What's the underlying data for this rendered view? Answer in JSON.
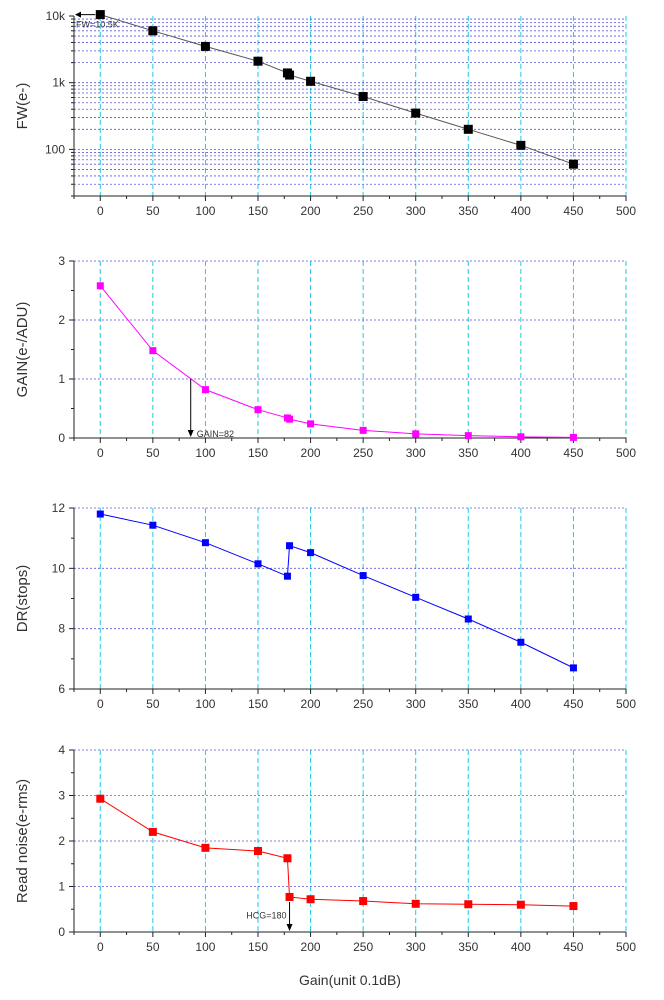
{
  "chart_data": [
    {
      "type": "line",
      "scale": "log",
      "ylabel": "FW(e-)",
      "xlabel": "",
      "xlim": [
        -25,
        500
      ],
      "ylim": [
        20,
        10000
      ],
      "color": "#000000",
      "x_ticks": [
        0,
        50,
        100,
        150,
        200,
        250,
        300,
        350,
        400,
        450,
        500
      ],
      "y_ticks": [
        {
          "value": 100,
          "label": "100"
        },
        {
          "value": 1000,
          "label": "1k"
        },
        {
          "value": 10000,
          "label": "10k"
        }
      ],
      "x": [
        0,
        50,
        100,
        150,
        178,
        180,
        200,
        250,
        300,
        350,
        400,
        450
      ],
      "values": [
        10500,
        6000,
        3500,
        2100,
        1400,
        1300,
        1050,
        620,
        350,
        200,
        115,
        60
      ],
      "annotation": {
        "text": "FW=10.5K",
        "x": 0,
        "y": 10500
      }
    },
    {
      "type": "line",
      "scale": "linear",
      "ylabel": "GAIN(e-/ADU)",
      "xlabel": "",
      "xlim": [
        -25,
        500
      ],
      "ylim": [
        0,
        3
      ],
      "color": "#ff00ff",
      "x_ticks": [
        0,
        50,
        100,
        150,
        200,
        250,
        300,
        350,
        400,
        450,
        500
      ],
      "y_ticks": [
        {
          "value": 0,
          "label": "0"
        },
        {
          "value": 1,
          "label": "1"
        },
        {
          "value": 2,
          "label": "2"
        },
        {
          "value": 3,
          "label": "3"
        }
      ],
      "x": [
        0,
        50,
        100,
        150,
        178,
        180,
        200,
        250,
        300,
        350,
        400,
        450
      ],
      "values": [
        2.58,
        1.48,
        0.82,
        0.48,
        0.34,
        0.32,
        0.24,
        0.13,
        0.07,
        0.04,
        0.02,
        0.01
      ],
      "annotation": {
        "text": "GAIN=82",
        "x": 86,
        "y": 1
      }
    },
    {
      "type": "line",
      "scale": "linear",
      "ylabel": "DR(stops)",
      "xlabel": "",
      "xlim": [
        -25,
        500
      ],
      "ylim": [
        6,
        12
      ],
      "color": "#0000ff",
      "x_ticks": [
        0,
        50,
        100,
        150,
        200,
        250,
        300,
        350,
        400,
        450,
        500
      ],
      "y_ticks": [
        {
          "value": 6,
          "label": "6"
        },
        {
          "value": 8,
          "label": "8"
        },
        {
          "value": 10,
          "label": "10"
        },
        {
          "value": 12,
          "label": "12"
        }
      ],
      "x": [
        0,
        50,
        100,
        150,
        178,
        180,
        200,
        250,
        300,
        350,
        400,
        450
      ],
      "values": [
        11.8,
        11.43,
        10.85,
        10.15,
        9.74,
        10.75,
        10.52,
        9.76,
        9.04,
        8.32,
        7.55,
        6.7
      ]
    },
    {
      "type": "line",
      "scale": "linear",
      "ylabel": "Read noise(e-rms)",
      "xlabel": "Gain(unit 0.1dB)",
      "xlim": [
        -25,
        500
      ],
      "ylim": [
        0,
        4
      ],
      "color": "#ff0000",
      "x_ticks": [
        0,
        50,
        100,
        150,
        200,
        250,
        300,
        350,
        400,
        450,
        500
      ],
      "y_ticks": [
        {
          "value": 0,
          "label": "0"
        },
        {
          "value": 1,
          "label": "1"
        },
        {
          "value": 2,
          "label": "2"
        },
        {
          "value": 3,
          "label": "3"
        },
        {
          "value": 4,
          "label": "4"
        }
      ],
      "x": [
        0,
        50,
        100,
        150,
        178,
        180,
        200,
        250,
        300,
        350,
        400,
        450
      ],
      "values": [
        2.93,
        2.2,
        1.85,
        1.78,
        1.62,
        0.77,
        0.72,
        0.68,
        0.62,
        0.61,
        0.6,
        0.57
      ],
      "annotation": {
        "text": "HCG=180",
        "x": 180,
        "y": 0.77
      }
    }
  ]
}
